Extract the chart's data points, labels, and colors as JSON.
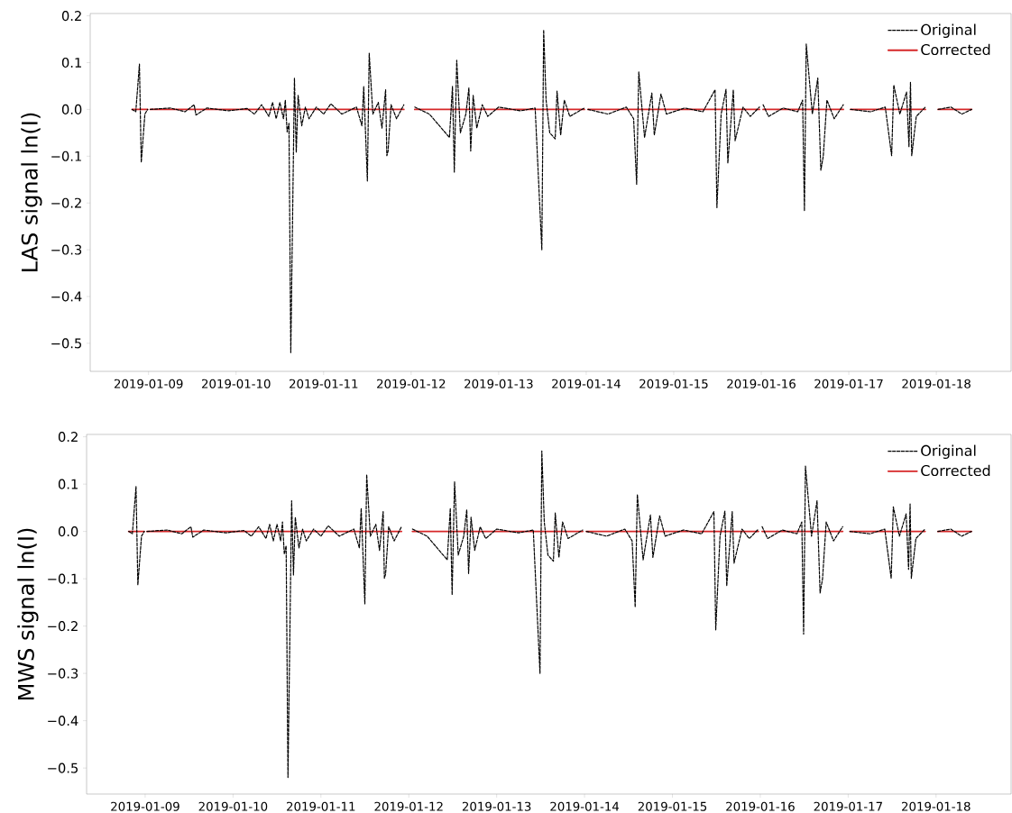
{
  "chart_data": [
    {
      "type": "line",
      "ylabel": "LAS signal ln(I)",
      "xlim": [
        "2019-01-08T08:00",
        "2019-01-18T20:30"
      ],
      "ylim": [
        -0.56,
        0.205
      ],
      "xticks": [
        "2019-01-09",
        "2019-01-10",
        "2019-01-11",
        "2019-01-12",
        "2019-01-13",
        "2019-01-14",
        "2019-01-15",
        "2019-01-16",
        "2019-01-17",
        "2019-01-18"
      ],
      "yticks": [
        {
          "value": -0.5,
          "label": "−0.5"
        },
        {
          "value": -0.4,
          "label": "−0.4"
        },
        {
          "value": -0.3,
          "label": "−0.3"
        },
        {
          "value": -0.2,
          "label": "−0.2"
        },
        {
          "value": -0.1,
          "label": "−0.1"
        },
        {
          "value": 0,
          "label": "0.0"
        },
        {
          "value": 0.1,
          "label": "0.1"
        },
        {
          "value": 0.2,
          "label": "0.2"
        }
      ],
      "legend": "top right",
      "series": [
        {
          "name": "Original",
          "color": "#000000",
          "line_style": "dashed",
          "x": [
            "2019-01-08T19:30",
            "2019-01-08T20:30",
            "2019-01-08T21:30",
            "2019-01-08T22:00",
            "2019-01-08T23:00",
            "2019-01-08T23:45",
            "2019-01-09T00:00",
            "2019-01-09T00:30",
            "2019-01-09T06:00",
            "2019-01-09T10:00",
            "2019-01-09T12:30",
            "2019-01-09T13:00",
            "2019-01-09T16:00",
            "2019-01-09T22:00",
            "2019-01-10T03:00",
            "2019-01-10T05:00",
            "2019-01-10T07:00",
            "2019-01-10T09:00",
            "2019-01-10T10:00",
            "2019-01-10T11:00",
            "2019-01-10T12:00",
            "2019-01-10T13:00",
            "2019-01-10T13:30",
            "2019-01-10T14:00",
            "2019-01-10T14:30",
            "2019-01-10T15:00",
            "2019-01-10T16:00",
            "2019-01-10T16:30",
            "2019-01-10T17:00",
            "2019-01-10T18:00",
            "2019-01-10T19:00",
            "2019-01-10T20:00",
            "2019-01-10T22:00",
            "2019-01-11T00:00",
            "2019-01-11T02:00",
            "2019-01-11T05:00",
            "2019-01-11T09:00",
            "2019-01-11T10:30",
            "2019-01-11T11:00",
            "2019-01-11T12:00",
            "2019-01-11T12:30",
            "2019-01-11T13:30",
            "2019-01-11T15:00",
            "2019-01-11T16:00",
            "2019-01-11T17:00",
            "2019-01-11T17:20",
            "2019-01-11T17:40",
            "2019-01-11T18:30",
            "2019-01-11T20:00",
            "2019-01-11T22:00",
            "2019-01-12T00:30",
            "2019-01-12T01:00",
            "2019-01-12T05:00",
            "2019-01-12T10:30",
            "2019-01-12T11:20",
            "2019-01-12T11:50",
            "2019-01-12T12:30",
            "2019-01-12T13:30",
            "2019-01-12T15:00",
            "2019-01-12T15:50",
            "2019-01-12T16:20",
            "2019-01-12T17:00",
            "2019-01-12T18:00",
            "2019-01-12T19:30",
            "2019-01-12T21:00",
            "2019-01-13T00:00",
            "2019-01-13T06:00",
            "2019-01-13T10:00",
            "2019-01-13T11:50",
            "2019-01-13T12:20",
            "2019-01-13T13:00",
            "2019-01-13T14:00",
            "2019-01-13T15:30",
            "2019-01-13T16:00",
            "2019-01-13T17:00",
            "2019-01-13T18:00",
            "2019-01-13T19:30",
            "2019-01-13T23:30",
            "2019-01-14T00:00",
            "2019-01-14T00:30",
            "2019-01-14T06:00",
            "2019-01-14T11:00",
            "2019-01-14T13:00",
            "2019-01-14T13:50",
            "2019-01-14T14:25",
            "2019-01-14T16:00",
            "2019-01-14T18:00",
            "2019-01-14T18:40",
            "2019-01-14T20:30",
            "2019-01-14T22:00",
            "2019-01-15T03:00",
            "2019-01-15T08:00",
            "2019-01-15T11:20",
            "2019-01-15T11:50",
            "2019-01-15T13:00",
            "2019-01-15T14:20",
            "2019-01-15T14:50",
            "2019-01-15T16:20",
            "2019-01-15T16:50",
            "2019-01-15T19:00",
            "2019-01-15T21:00",
            "2019-01-15T23:30",
            "2019-01-16T00:00",
            "2019-01-16T00:30",
            "2019-01-16T02:00",
            "2019-01-16T06:00",
            "2019-01-16T10:00",
            "2019-01-16T11:20",
            "2019-01-16T11:50",
            "2019-01-16T12:20",
            "2019-01-16T14:00",
            "2019-01-16T15:30",
            "2019-01-16T16:20",
            "2019-01-16T17:00",
            "2019-01-16T18:00",
            "2019-01-16T20:00",
            "2019-01-16T22:30",
            "2019-01-17T00:10",
            "2019-01-17T00:30",
            "2019-01-17T06:00",
            "2019-01-17T10:00",
            "2019-01-17T11:45",
            "2019-01-17T12:20",
            "2019-01-17T14:00",
            "2019-01-17T15:50",
            "2019-01-17T16:30",
            "2019-01-17T16:55",
            "2019-01-17T17:15",
            "2019-01-17T18:30",
            "2019-01-17T21:00",
            "2019-01-18T00:10",
            "2019-01-18T00:30",
            "2019-01-18T04:00",
            "2019-01-18T07:00",
            "2019-01-18T09:40"
          ],
          "values": [
            0,
            -0.005,
            0.097,
            -0.113,
            -0.01,
            0,
            null,
            0,
            0.003,
            -0.005,
            0.01,
            -0.012,
            0.003,
            -0.003,
            0.002,
            -0.01,
            0.01,
            -0.015,
            0.015,
            -0.02,
            0.015,
            -0.02,
            0.02,
            -0.048,
            -0.03,
            -0.52,
            0.067,
            -0.092,
            0.03,
            -0.035,
            0.005,
            -0.02,
            0.005,
            -0.01,
            0.012,
            -0.01,
            0.005,
            -0.035,
            0.049,
            -0.153,
            0.12,
            -0.01,
            0.015,
            -0.04,
            0.042,
            -0.099,
            -0.09,
            0.01,
            -0.02,
            0.01,
            null,
            0.005,
            -0.01,
            -0.06,
            0.049,
            -0.134,
            0.105,
            -0.05,
            -0.01,
            0.046,
            -0.089,
            0.03,
            -0.04,
            0.01,
            -0.015,
            0.005,
            -0.003,
            0.003,
            -0.3,
            0.17,
            0.02,
            -0.05,
            -0.063,
            0.039,
            -0.055,
            0.02,
            -0.015,
            0.003,
            null,
            0,
            -0.01,
            0.005,
            -0.02,
            -0.16,
            0.08,
            -0.06,
            0.035,
            -0.055,
            0.033,
            -0.01,
            0.003,
            -0.005,
            0.042,
            -0.21,
            -0.01,
            0.043,
            -0.115,
            0.042,
            -0.067,
            0.005,
            -0.015,
            0.005,
            null,
            0.01,
            -0.015,
            0.003,
            -0.005,
            0.02,
            -0.217,
            0.14,
            -0.01,
            0.067,
            -0.13,
            -0.1,
            0.02,
            -0.02,
            0.01,
            null,
            0,
            -0.005,
            0.005,
            -0.099,
            0.052,
            -0.01,
            0.037,
            -0.08,
            0.058,
            -0.099,
            -0.015,
            0.005,
            null,
            0,
            0.005,
            -0.01,
            0
          ]
        },
        {
          "name": "Corrected",
          "color": "#d62728",
          "line_style": "solid",
          "x": [
            "2019-01-08T19:30",
            "2019-01-08T23:45",
            "2019-01-09T00:00",
            "2019-01-09T00:30",
            "2019-01-11T22:00",
            "2019-01-12T00:30",
            "2019-01-12T01:00",
            "2019-01-13T23:30",
            "2019-01-14T00:00",
            "2019-01-14T00:30",
            "2019-01-15T23:30",
            "2019-01-16T00:00",
            "2019-01-16T00:30",
            "2019-01-16T22:30",
            "2019-01-17T00:10",
            "2019-01-17T00:30",
            "2019-01-17T21:00",
            "2019-01-18T00:10",
            "2019-01-18T00:30",
            "2019-01-18T09:40"
          ],
          "values": [
            0,
            0,
            null,
            0,
            0,
            null,
            0,
            0,
            null,
            0,
            0,
            null,
            0,
            0,
            null,
            0,
            0,
            null,
            0,
            0
          ]
        }
      ]
    },
    {
      "type": "line",
      "ylabel": "MWS signal ln(I)",
      "xlim": [
        "2019-01-08T08:00",
        "2019-01-18T20:30"
      ],
      "ylim": [
        -0.555,
        0.205
      ],
      "xticks": [
        "2019-01-09",
        "2019-01-10",
        "2019-01-11",
        "2019-01-12",
        "2019-01-13",
        "2019-01-14",
        "2019-01-15",
        "2019-01-16",
        "2019-01-17",
        "2019-01-18"
      ],
      "yticks": [
        {
          "value": -0.5,
          "label": "−0.5"
        },
        {
          "value": -0.4,
          "label": "−0.4"
        },
        {
          "value": -0.3,
          "label": "−0.3"
        },
        {
          "value": -0.2,
          "label": "−0.2"
        },
        {
          "value": -0.1,
          "label": "−0.1"
        },
        {
          "value": 0,
          "label": "0.0"
        },
        {
          "value": 0.1,
          "label": "0.1"
        },
        {
          "value": 0.2,
          "label": "0.2"
        }
      ],
      "legend": "top right",
      "series": [
        {
          "name": "Original",
          "color": "#000000",
          "line_style": "dashed",
          "x": [
            "2019-01-08T19:30",
            "2019-01-08T20:30",
            "2019-01-08T21:30",
            "2019-01-08T22:00",
            "2019-01-08T23:00",
            "2019-01-08T23:45",
            "2019-01-09T00:00",
            "2019-01-09T00:30",
            "2019-01-09T06:00",
            "2019-01-09T10:00",
            "2019-01-09T12:30",
            "2019-01-09T13:00",
            "2019-01-09T16:00",
            "2019-01-09T22:00",
            "2019-01-10T03:00",
            "2019-01-10T05:00",
            "2019-01-10T07:00",
            "2019-01-10T09:00",
            "2019-01-10T10:00",
            "2019-01-10T11:00",
            "2019-01-10T12:00",
            "2019-01-10T13:00",
            "2019-01-10T13:30",
            "2019-01-10T14:00",
            "2019-01-10T14:30",
            "2019-01-10T15:00",
            "2019-01-10T16:00",
            "2019-01-10T16:30",
            "2019-01-10T17:00",
            "2019-01-10T18:00",
            "2019-01-10T19:00",
            "2019-01-10T20:00",
            "2019-01-10T22:00",
            "2019-01-11T00:00",
            "2019-01-11T02:00",
            "2019-01-11T05:00",
            "2019-01-11T09:00",
            "2019-01-11T10:30",
            "2019-01-11T11:00",
            "2019-01-11T12:00",
            "2019-01-11T12:30",
            "2019-01-11T13:30",
            "2019-01-11T15:00",
            "2019-01-11T16:00",
            "2019-01-11T17:00",
            "2019-01-11T17:20",
            "2019-01-11T17:40",
            "2019-01-11T18:30",
            "2019-01-11T20:00",
            "2019-01-11T22:00",
            "2019-01-12T00:30",
            "2019-01-12T01:00",
            "2019-01-12T05:00",
            "2019-01-12T10:30",
            "2019-01-12T11:20",
            "2019-01-12T11:50",
            "2019-01-12T12:30",
            "2019-01-12T13:30",
            "2019-01-12T15:00",
            "2019-01-12T15:50",
            "2019-01-12T16:20",
            "2019-01-12T17:00",
            "2019-01-12T18:00",
            "2019-01-12T19:30",
            "2019-01-12T21:00",
            "2019-01-13T00:00",
            "2019-01-13T06:00",
            "2019-01-13T10:00",
            "2019-01-13T11:50",
            "2019-01-13T12:20",
            "2019-01-13T13:00",
            "2019-01-13T14:00",
            "2019-01-13T15:30",
            "2019-01-13T16:00",
            "2019-01-13T17:00",
            "2019-01-13T18:00",
            "2019-01-13T19:30",
            "2019-01-13T23:30",
            "2019-01-14T00:00",
            "2019-01-14T00:30",
            "2019-01-14T06:00",
            "2019-01-14T11:00",
            "2019-01-14T13:00",
            "2019-01-14T13:50",
            "2019-01-14T14:25",
            "2019-01-14T16:00",
            "2019-01-14T18:00",
            "2019-01-14T18:40",
            "2019-01-14T20:30",
            "2019-01-14T22:00",
            "2019-01-15T03:00",
            "2019-01-15T08:00",
            "2019-01-15T11:20",
            "2019-01-15T11:50",
            "2019-01-15T13:00",
            "2019-01-15T14:20",
            "2019-01-15T14:50",
            "2019-01-15T16:20",
            "2019-01-15T16:50",
            "2019-01-15T19:00",
            "2019-01-15T21:00",
            "2019-01-15T23:30",
            "2019-01-16T00:00",
            "2019-01-16T00:30",
            "2019-01-16T02:00",
            "2019-01-16T06:00",
            "2019-01-16T10:00",
            "2019-01-16T11:20",
            "2019-01-16T11:50",
            "2019-01-16T12:20",
            "2019-01-16T14:00",
            "2019-01-16T15:30",
            "2019-01-16T16:20",
            "2019-01-16T17:00",
            "2019-01-16T18:00",
            "2019-01-16T20:00",
            "2019-01-16T22:30",
            "2019-01-17T00:10",
            "2019-01-17T00:30",
            "2019-01-17T06:00",
            "2019-01-17T10:00",
            "2019-01-17T11:45",
            "2019-01-17T12:20",
            "2019-01-17T14:00",
            "2019-01-17T15:50",
            "2019-01-17T16:30",
            "2019-01-17T16:55",
            "2019-01-17T17:15",
            "2019-01-17T18:30",
            "2019-01-17T21:00",
            "2019-01-18T00:10",
            "2019-01-18T00:30",
            "2019-01-18T04:00",
            "2019-01-18T07:00",
            "2019-01-18T09:40"
          ],
          "values": [
            0,
            -0.005,
            0.095,
            -0.113,
            -0.01,
            0,
            null,
            0,
            0.003,
            -0.005,
            0.01,
            -0.012,
            0.003,
            -0.003,
            0.002,
            -0.01,
            0.01,
            -0.015,
            0.015,
            -0.02,
            0.015,
            -0.02,
            0.02,
            -0.048,
            -0.03,
            -0.52,
            0.065,
            -0.092,
            0.03,
            -0.035,
            0.005,
            -0.02,
            0.005,
            -0.01,
            0.012,
            -0.01,
            0.005,
            -0.035,
            0.049,
            -0.153,
            0.12,
            -0.01,
            0.015,
            -0.04,
            0.042,
            -0.099,
            -0.09,
            0.01,
            -0.02,
            0.01,
            null,
            0.005,
            -0.01,
            -0.06,
            0.049,
            -0.134,
            0.105,
            -0.05,
            -0.01,
            0.046,
            -0.089,
            0.03,
            -0.04,
            0.01,
            -0.015,
            0.005,
            -0.003,
            0.003,
            -0.3,
            0.17,
            0.02,
            -0.05,
            -0.063,
            0.039,
            -0.055,
            0.02,
            -0.015,
            0.003,
            null,
            0,
            -0.01,
            0.005,
            -0.02,
            -0.16,
            0.078,
            -0.06,
            0.035,
            -0.055,
            0.033,
            -0.01,
            0.003,
            -0.005,
            0.042,
            -0.208,
            -0.01,
            0.043,
            -0.115,
            0.042,
            -0.067,
            0.005,
            -0.015,
            0.005,
            null,
            0.01,
            -0.015,
            0.003,
            -0.005,
            0.02,
            -0.217,
            0.138,
            -0.01,
            0.065,
            -0.13,
            -0.1,
            0.02,
            -0.02,
            0.01,
            null,
            0,
            -0.005,
            0.005,
            -0.099,
            0.052,
            -0.01,
            0.037,
            -0.08,
            0.058,
            -0.099,
            -0.015,
            0.005,
            null,
            0,
            0.005,
            -0.01,
            0
          ]
        },
        {
          "name": "Corrected",
          "color": "#d62728",
          "line_style": "solid",
          "x": [
            "2019-01-08T19:30",
            "2019-01-08T23:45",
            "2019-01-09T00:00",
            "2019-01-09T00:30",
            "2019-01-11T22:00",
            "2019-01-12T00:30",
            "2019-01-12T01:00",
            "2019-01-13T23:30",
            "2019-01-14T00:00",
            "2019-01-14T00:30",
            "2019-01-15T23:30",
            "2019-01-16T00:00",
            "2019-01-16T00:30",
            "2019-01-16T22:30",
            "2019-01-17T00:10",
            "2019-01-17T00:30",
            "2019-01-17T21:00",
            "2019-01-18T00:10",
            "2019-01-18T00:30",
            "2019-01-18T09:40"
          ],
          "values": [
            0,
            0,
            null,
            0,
            0,
            null,
            0,
            0,
            null,
            0,
            0,
            null,
            0,
            0,
            null,
            0,
            0,
            null,
            0,
            0
          ]
        }
      ]
    }
  ]
}
